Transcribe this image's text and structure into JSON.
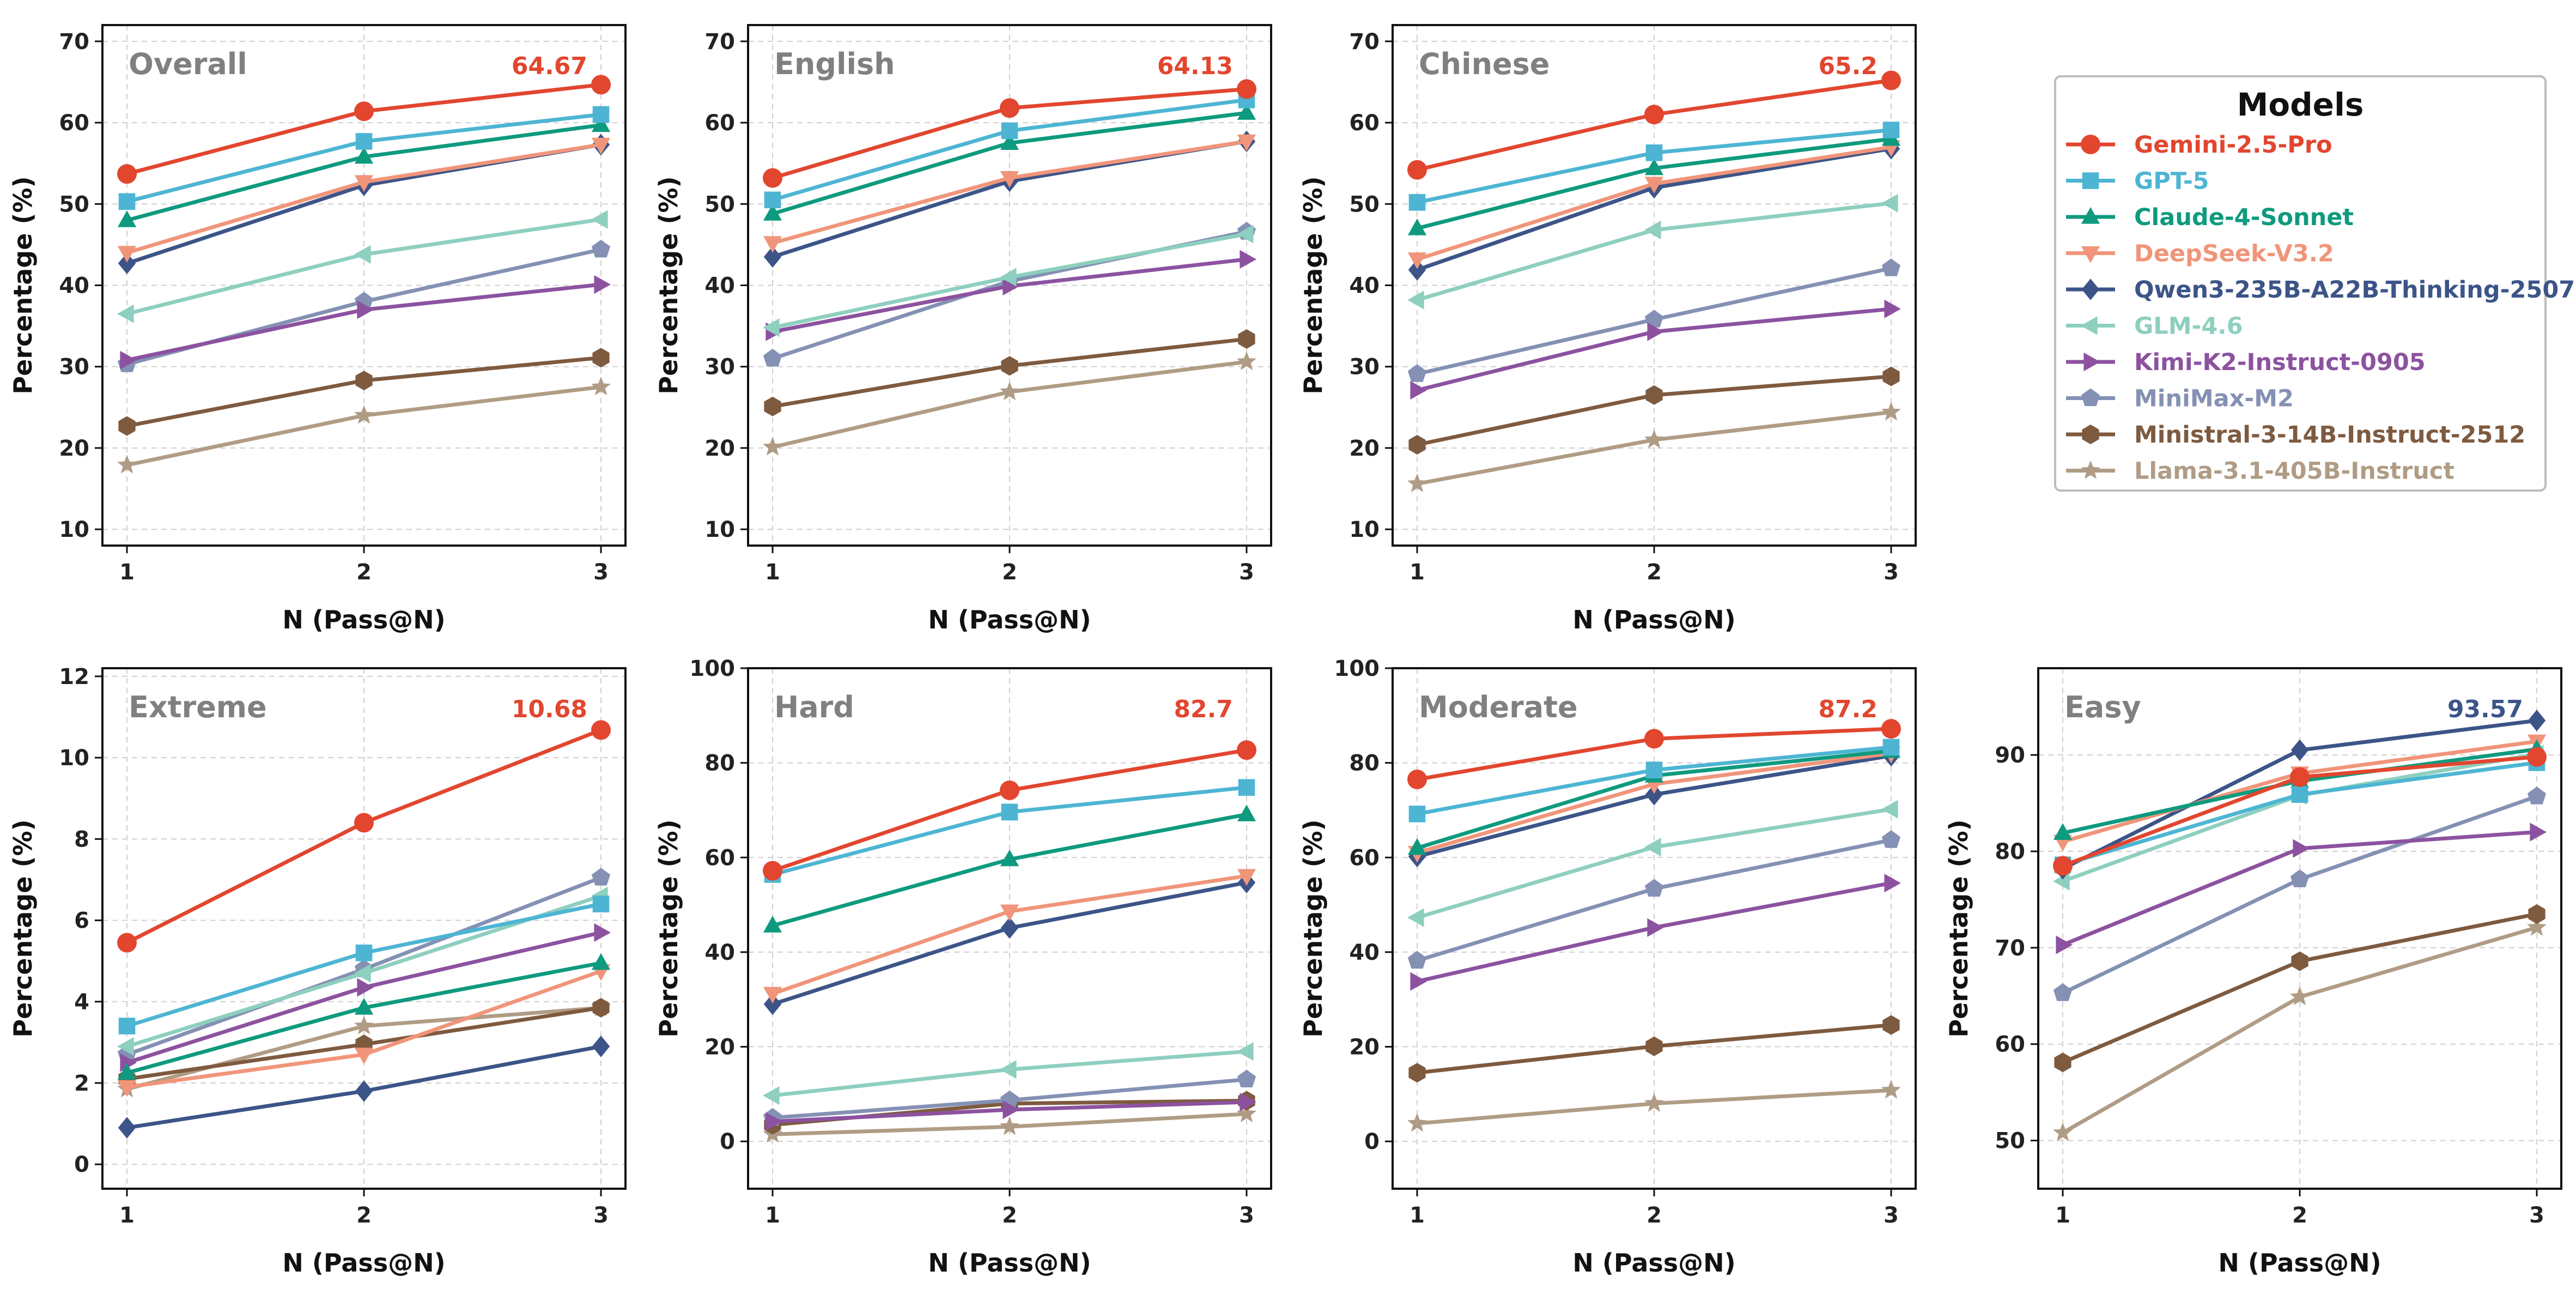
{
  "legend": {
    "title": "Models",
    "placement": "right",
    "models": [
      {
        "name": "Gemini-2.5-Pro",
        "color": "#E2462F",
        "marker": "circle"
      },
      {
        "name": "GPT-5",
        "color": "#4DB5D3",
        "marker": "square"
      },
      {
        "name": "Claude-4-Sonnet",
        "color": "#0E9A7E",
        "marker": "triangle-up"
      },
      {
        "name": "DeepSeek-V3.2",
        "color": "#F0957A",
        "marker": "triangle-down"
      },
      {
        "name": "Qwen3-235B-A22B-Thinking-2507",
        "color": "#3C5488",
        "marker": "diamond"
      },
      {
        "name": "GLM-4.6",
        "color": "#8ECFBF",
        "marker": "triangle-left"
      },
      {
        "name": "Kimi-K2-Instruct-0905",
        "color": "#8C52A0",
        "marker": "triangle-right"
      },
      {
        "name": "MiniMax-M2",
        "color": "#8491B4",
        "marker": "pentagon"
      },
      {
        "name": "Ministral-3-14B-Instruct-2512",
        "color": "#7E5A3F",
        "marker": "hexagon"
      },
      {
        "name": "Llama-3.1-405B-Instruct",
        "color": "#B09C85",
        "marker": "star"
      }
    ]
  },
  "chart_data": [
    {
      "type": "line",
      "title": "Overall",
      "xlabel": "N (Pass@N)",
      "ylabel": "Percentage (%)",
      "x": [
        1,
        2,
        3
      ],
      "ylim": [
        8,
        72
      ],
      "yticks": [
        10,
        20,
        30,
        40,
        50,
        60,
        70
      ],
      "annotation": {
        "text": "64.67",
        "color": "#E2462F"
      },
      "series": [
        {
          "name": "Gemini-2.5-Pro",
          "values": [
            53.7,
            61.4,
            64.67
          ]
        },
        {
          "name": "GPT-5",
          "values": [
            50.3,
            57.7,
            61.0
          ]
        },
        {
          "name": "Claude-4-Sonnet",
          "values": [
            48.0,
            55.8,
            59.7
          ]
        },
        {
          "name": "DeepSeek-V3.2",
          "values": [
            44.0,
            52.7,
            57.3
          ]
        },
        {
          "name": "Qwen3-235B-A22B-Thinking-2507",
          "values": [
            42.7,
            52.3,
            57.3
          ]
        },
        {
          "name": "GLM-4.6",
          "values": [
            36.5,
            43.8,
            48.1
          ]
        },
        {
          "name": "Kimi-K2-Instruct-0905",
          "values": [
            30.8,
            37.0,
            40.1
          ]
        },
        {
          "name": "MiniMax-M2",
          "values": [
            30.3,
            38.0,
            44.4
          ]
        },
        {
          "name": "Ministral-3-14B-Instruct-2512",
          "values": [
            22.7,
            28.3,
            31.1
          ]
        },
        {
          "name": "Llama-3.1-405B-Instruct",
          "values": [
            17.9,
            24.0,
            27.5
          ]
        }
      ]
    },
    {
      "type": "line",
      "title": "English",
      "xlabel": "N (Pass@N)",
      "ylabel": "Percentage (%)",
      "x": [
        1,
        2,
        3
      ],
      "ylim": [
        8,
        72
      ],
      "yticks": [
        10,
        20,
        30,
        40,
        50,
        60,
        70
      ],
      "annotation": {
        "text": "64.13",
        "color": "#E2462F"
      },
      "series": [
        {
          "name": "Gemini-2.5-Pro",
          "values": [
            53.2,
            61.8,
            64.13
          ]
        },
        {
          "name": "GPT-5",
          "values": [
            50.5,
            59.0,
            62.8
          ]
        },
        {
          "name": "Claude-4-Sonnet",
          "values": [
            48.8,
            57.5,
            61.2
          ]
        },
        {
          "name": "DeepSeek-V3.2",
          "values": [
            45.2,
            53.2,
            57.7
          ]
        },
        {
          "name": "Qwen3-235B-A22B-Thinking-2507",
          "values": [
            43.5,
            52.8,
            57.7
          ]
        },
        {
          "name": "GLM-4.6",
          "values": [
            34.8,
            41.0,
            46.3
          ]
        },
        {
          "name": "Kimi-K2-Instruct-0905",
          "values": [
            34.3,
            39.9,
            43.2
          ]
        },
        {
          "name": "MiniMax-M2",
          "values": [
            31.0,
            40.5,
            46.6
          ]
        },
        {
          "name": "Ministral-3-14B-Instruct-2512",
          "values": [
            25.1,
            30.1,
            33.4
          ]
        },
        {
          "name": "Llama-3.1-405B-Instruct",
          "values": [
            20.1,
            26.9,
            30.6
          ]
        }
      ]
    },
    {
      "type": "line",
      "title": "Chinese",
      "xlabel": "N (Pass@N)",
      "ylabel": "Percentage (%)",
      "x": [
        1,
        2,
        3
      ],
      "ylim": [
        8,
        72
      ],
      "yticks": [
        10,
        20,
        30,
        40,
        50,
        60,
        70
      ],
      "annotation": {
        "text": "65.2",
        "color": "#E2462F"
      },
      "series": [
        {
          "name": "Gemini-2.5-Pro",
          "values": [
            54.2,
            61.0,
            65.2
          ]
        },
        {
          "name": "GPT-5",
          "values": [
            50.2,
            56.3,
            59.1
          ]
        },
        {
          "name": "Claude-4-Sonnet",
          "values": [
            47.0,
            54.4,
            58.0
          ]
        },
        {
          "name": "DeepSeek-V3.2",
          "values": [
            43.2,
            52.5,
            57.0
          ]
        },
        {
          "name": "Qwen3-235B-A22B-Thinking-2507",
          "values": [
            41.9,
            52.0,
            56.8
          ]
        },
        {
          "name": "GLM-4.6",
          "values": [
            38.2,
            46.8,
            50.1
          ]
        },
        {
          "name": "Kimi-K2-Instruct-0905",
          "values": [
            27.1,
            34.3,
            37.1
          ]
        },
        {
          "name": "MiniMax-M2",
          "values": [
            29.1,
            35.8,
            42.1
          ]
        },
        {
          "name": "Ministral-3-14B-Instruct-2512",
          "values": [
            20.4,
            26.5,
            28.8
          ]
        },
        {
          "name": "Llama-3.1-405B-Instruct",
          "values": [
            15.6,
            21.0,
            24.4
          ]
        }
      ]
    },
    {
      "type": "line",
      "title": "Extreme",
      "xlabel": "N (Pass@N)",
      "ylabel": "Percentage (%)",
      "x": [
        1,
        2,
        3
      ],
      "ylim": [
        -0.6,
        12.2
      ],
      "yticks": [
        0,
        2,
        4,
        6,
        8,
        10,
        12
      ],
      "annotation": {
        "text": "10.68",
        "color": "#E2462F"
      },
      "series": [
        {
          "name": "Gemini-2.5-Pro",
          "values": [
            5.45,
            8.4,
            10.68
          ]
        },
        {
          "name": "GPT-5",
          "values": [
            3.4,
            5.2,
            6.4
          ]
        },
        {
          "name": "Claude-4-Sonnet",
          "values": [
            2.25,
            3.85,
            4.95
          ]
        },
        {
          "name": "DeepSeek-V3.2",
          "values": [
            1.9,
            2.7,
            4.75
          ]
        },
        {
          "name": "Qwen3-235B-A22B-Thinking-2507",
          "values": [
            0.9,
            1.8,
            2.9
          ]
        },
        {
          "name": "GLM-4.6",
          "values": [
            2.9,
            4.7,
            6.6
          ]
        },
        {
          "name": "Kimi-K2-Instruct-0905",
          "values": [
            2.5,
            4.35,
            5.7
          ]
        },
        {
          "name": "MiniMax-M2",
          "values": [
            2.7,
            4.8,
            7.05
          ]
        },
        {
          "name": "Ministral-3-14B-Instruct-2512",
          "values": [
            2.1,
            2.95,
            3.85
          ]
        },
        {
          "name": "Llama-3.1-405B-Instruct",
          "values": [
            1.85,
            3.4,
            3.85
          ]
        }
      ]
    },
    {
      "type": "line",
      "title": "Hard",
      "xlabel": "N (Pass@N)",
      "ylabel": "Percentage (%)",
      "x": [
        1,
        2,
        3
      ],
      "ylim": [
        -10,
        100
      ],
      "yticks": [
        0,
        20,
        40,
        60,
        80,
        100
      ],
      "annotation": {
        "text": "82.7",
        "color": "#E2462F"
      },
      "series": [
        {
          "name": "Gemini-2.5-Pro",
          "values": [
            57.2,
            74.2,
            82.7
          ]
        },
        {
          "name": "GPT-5",
          "values": [
            56.4,
            69.6,
            74.8
          ]
        },
        {
          "name": "Claude-4-Sonnet",
          "values": [
            45.6,
            59.6,
            69.1
          ]
        },
        {
          "name": "DeepSeek-V3.2",
          "values": [
            31.2,
            48.6,
            56.1
          ]
        },
        {
          "name": "Qwen3-235B-A22B-Thinking-2507",
          "values": [
            29.0,
            45.1,
            54.7
          ]
        },
        {
          "name": "GLM-4.6",
          "values": [
            9.7,
            15.2,
            19.0
          ]
        },
        {
          "name": "Kimi-K2-Instruct-0905",
          "values": [
            4.2,
            6.7,
            8.3
          ]
        },
        {
          "name": "MiniMax-M2",
          "values": [
            5.0,
            8.7,
            13.1
          ]
        },
        {
          "name": "Ministral-3-14B-Instruct-2512",
          "values": [
            3.5,
            8.0,
            8.6
          ]
        },
        {
          "name": "Llama-3.1-405B-Instruct",
          "values": [
            1.5,
            3.1,
            5.8
          ]
        }
      ]
    },
    {
      "type": "line",
      "title": "Moderate",
      "xlabel": "N (Pass@N)",
      "ylabel": "Percentage (%)",
      "x": [
        1,
        2,
        3
      ],
      "ylim": [
        -10,
        100
      ],
      "yticks": [
        0,
        20,
        40,
        60,
        80,
        100
      ],
      "annotation": {
        "text": "87.2",
        "color": "#E2462F"
      },
      "series": [
        {
          "name": "Gemini-2.5-Pro",
          "values": [
            76.5,
            85.1,
            87.2
          ]
        },
        {
          "name": "GPT-5",
          "values": [
            69.2,
            78.5,
            83.3
          ]
        },
        {
          "name": "Claude-4-Sonnet",
          "values": [
            62.0,
            77.3,
            82.5
          ]
        },
        {
          "name": "DeepSeek-V3.2",
          "values": [
            61.0,
            75.5,
            82.0
          ]
        },
        {
          "name": "Qwen3-235B-A22B-Thinking-2507",
          "values": [
            60.2,
            73.3,
            81.5
          ]
        },
        {
          "name": "GLM-4.6",
          "values": [
            47.3,
            62.2,
            70.2
          ]
        },
        {
          "name": "Kimi-K2-Instruct-0905",
          "values": [
            33.8,
            45.2,
            54.6
          ]
        },
        {
          "name": "MiniMax-M2",
          "values": [
            38.2,
            53.4,
            63.7
          ]
        },
        {
          "name": "Ministral-3-14B-Instruct-2512",
          "values": [
            14.5,
            20.1,
            24.6
          ]
        },
        {
          "name": "Llama-3.1-405B-Instruct",
          "values": [
            3.8,
            8.0,
            10.8
          ]
        }
      ]
    },
    {
      "type": "line",
      "title": "Easy",
      "xlabel": "N (Pass@N)",
      "ylabel": "Percentage (%)",
      "x": [
        1,
        2,
        3
      ],
      "ylim": [
        45,
        99
      ],
      "yticks": [
        50,
        60,
        70,
        80,
        90
      ],
      "annotation": {
        "text": "93.57",
        "color": "#3C5488"
      },
      "series": [
        {
          "name": "Gemini-2.5-Pro",
          "values": [
            78.5,
            87.7,
            89.8
          ]
        },
        {
          "name": "GPT-5",
          "values": [
            78.6,
            85.9,
            89.2
          ]
        },
        {
          "name": "Claude-4-Sonnet",
          "values": [
            81.9,
            87.3,
            90.6
          ]
        },
        {
          "name": "DeepSeek-V3.2",
          "values": [
            81.0,
            88.1,
            91.4
          ]
        },
        {
          "name": "Qwen3-235B-A22B-Thinking-2507",
          "values": [
            78.2,
            90.5,
            93.57
          ]
        },
        {
          "name": "GLM-4.6",
          "values": [
            76.9,
            85.8,
            90.1
          ]
        },
        {
          "name": "Kimi-K2-Instruct-0905",
          "values": [
            70.3,
            80.3,
            82.0
          ]
        },
        {
          "name": "MiniMax-M2",
          "values": [
            65.3,
            77.1,
            85.7
          ]
        },
        {
          "name": "Ministral-3-14B-Instruct-2512",
          "values": [
            58.1,
            68.6,
            73.5
          ]
        },
        {
          "name": "Llama-3.1-405B-Instruct",
          "values": [
            50.8,
            64.9,
            72.1
          ]
        }
      ]
    }
  ]
}
